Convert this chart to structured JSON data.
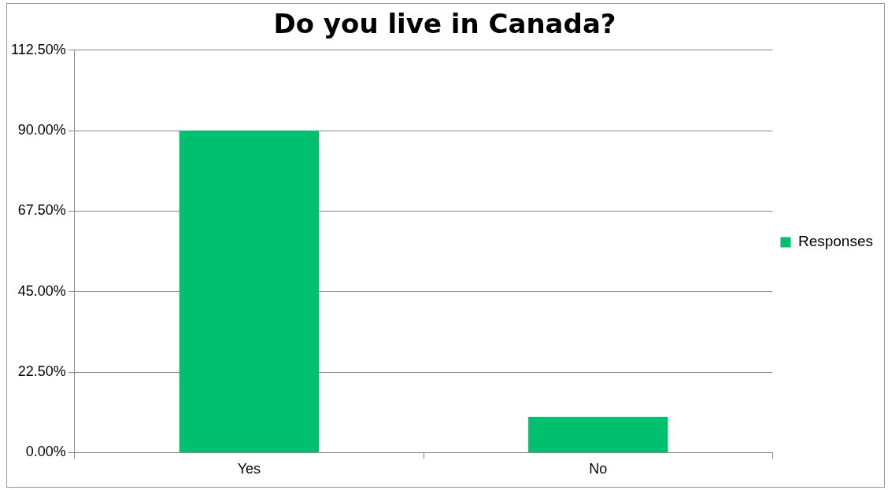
{
  "chart_data": {
    "type": "bar",
    "title": "Do you live in Canada?",
    "categories": [
      "Yes",
      "No"
    ],
    "series": [
      {
        "name": "Responses",
        "color": "#00bf6f",
        "values": [
          90,
          10
        ]
      }
    ],
    "ylim": [
      0,
      112.5
    ],
    "yticks": [
      {
        "value": 0,
        "label": "0.00%"
      },
      {
        "value": 22.5,
        "label": "22.50%"
      },
      {
        "value": 45,
        "label": "45.00%"
      },
      {
        "value": 67.5,
        "label": "67.50%"
      },
      {
        "value": 90,
        "label": "90.00%"
      },
      {
        "value": 112.5,
        "label": "112.50%"
      }
    ],
    "grid": "y",
    "legend": "right"
  }
}
